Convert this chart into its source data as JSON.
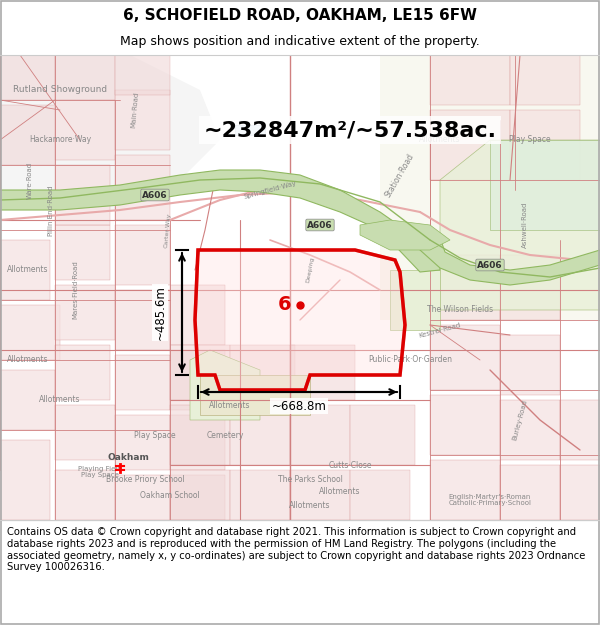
{
  "title_line1": "6, SCHOFIELD ROAD, OAKHAM, LE15 6FW",
  "title_line2": "Map shows position and indicative extent of the property.",
  "measurement_area": "~232847m²/~57.538ac.",
  "measurement_width": "~485.6m",
  "measurement_bottom": "~668.8m",
  "property_label": "6",
  "copyright_text": "Contains OS data © Crown copyright and database right 2021. This information is subject to Crown copyright and database rights 2023 and is reproduced with the permission of HM Land Registry. The polygons (including the associated geometry, namely x, y co-ordinates) are subject to Crown copyright and database rights 2023 Ordnance Survey 100026316.",
  "map_bg": "#ffffff",
  "road_pink": "#e8aaaa",
  "road_pink_dark": "#d08080",
  "green_corridor": "#c8ddb0",
  "green_dark": "#90b860",
  "light_green": "#ddeedd",
  "property_color": "#dd0000",
  "text_gray": "#888888",
  "text_dark": "#555555",
  "title_fontsize": 11,
  "subtitle_fontsize": 9,
  "copyright_fontsize": 7.2,
  "fig_width": 6.0,
  "fig_height": 6.25,
  "dpi": 100
}
